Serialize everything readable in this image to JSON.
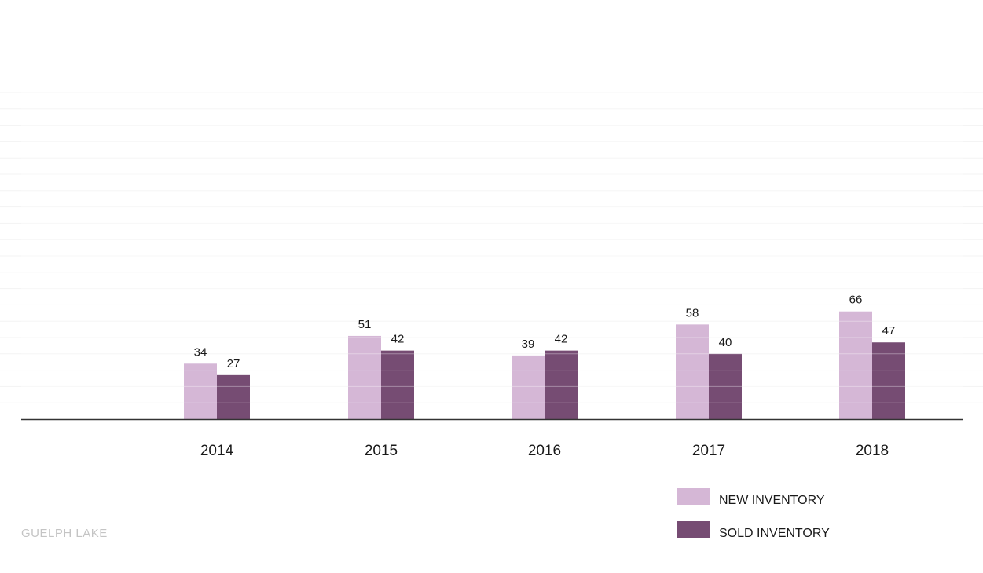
{
  "chart_data": {
    "type": "bar",
    "categories": [
      "2014",
      "2015",
      "2016",
      "2017",
      "2018"
    ],
    "series": [
      {
        "name": "NEW INVENTORY",
        "color": "#d5b7d6",
        "values": [
          34,
          51,
          39,
          58,
          66
        ]
      },
      {
        "name": "SOLD INVENTORY",
        "color": "#764c73",
        "values": [
          27,
          42,
          42,
          40,
          47
        ]
      }
    ],
    "ylim": [
      0,
      200
    ],
    "grid": true,
    "legend_position": "bottom-right",
    "axis_color": "#333333",
    "grid_color": "#f3f3f3"
  },
  "footer": {
    "label": "GUELPH LAKE"
  }
}
